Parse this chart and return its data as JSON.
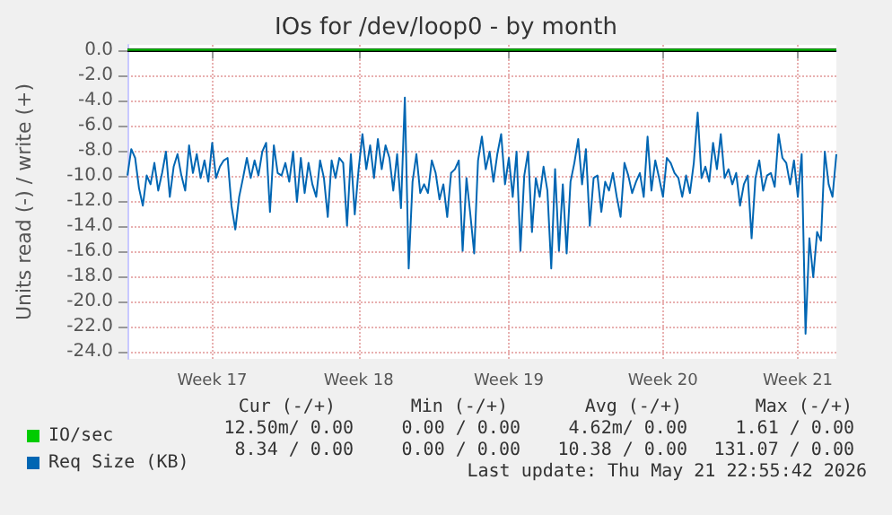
{
  "chart_data": {
    "type": "line",
    "title": "IOs for /dev/loop0 - by month",
    "ylabel": "Units read (-) / write (+)",
    "categories": [
      null,
      null,
      null,
      null,
      null,
      null,
      null,
      null,
      null,
      null,
      null,
      null,
      null,
      null,
      null,
      null,
      null,
      null,
      null,
      null,
      null,
      null,
      "Week 17",
      null,
      null,
      null,
      null,
      null,
      null,
      null,
      null,
      null,
      null,
      null,
      null,
      null,
      null,
      null,
      null,
      null,
      null,
      null,
      null,
      null,
      null,
      null,
      null,
      null,
      null,
      null,
      null,
      null,
      null,
      null,
      null,
      null,
      null,
      null,
      null,
      null,
      "Week 18",
      null,
      null,
      null,
      null,
      null,
      null,
      null,
      null,
      null,
      null,
      null,
      null,
      null,
      null,
      null,
      null,
      null,
      null,
      null,
      null,
      null,
      null,
      null,
      null,
      null,
      null,
      null,
      null,
      null,
      null,
      null,
      null,
      null,
      null,
      null,
      null,
      null,
      null,
      "Week 19",
      null,
      null,
      null,
      null,
      null,
      null,
      null,
      null,
      null,
      null,
      null,
      null,
      null,
      null,
      null,
      null,
      null,
      null,
      null,
      null,
      null,
      null,
      null,
      null,
      null,
      null,
      null,
      null,
      null,
      null,
      null,
      null,
      null,
      null,
      null,
      null,
      null,
      null,
      null,
      "Week 20",
      null,
      null,
      null,
      null,
      null,
      null,
      null,
      null,
      null,
      null,
      null,
      null,
      null,
      null,
      null,
      null,
      null,
      null,
      null,
      null,
      null,
      null,
      null,
      null,
      null,
      null,
      null,
      null,
      null,
      null,
      null,
      null,
      null,
      null,
      "Week 21",
      null,
      null,
      null,
      null,
      null,
      null,
      null,
      null,
      null,
      null
    ],
    "ylim": [
      -24.6,
      0.4
    ],
    "yticks": [
      {
        "value": 0,
        "label": "0.0"
      },
      {
        "value": -2,
        "label": "-2.0"
      },
      {
        "value": -4,
        "label": "-4.0"
      },
      {
        "value": -6,
        "label": "-6.0"
      },
      {
        "value": -8,
        "label": "-8.0"
      },
      {
        "value": -10,
        "label": "-10.0"
      },
      {
        "value": -12,
        "label": "-12.0"
      },
      {
        "value": -14,
        "label": "-14.0"
      },
      {
        "value": -16,
        "label": "-16.0"
      },
      {
        "value": -18,
        "label": "-18.0"
      },
      {
        "value": -20,
        "label": "-20.0"
      },
      {
        "value": -22,
        "label": "-22.0"
      },
      {
        "value": -24,
        "label": "-24.0"
      }
    ],
    "grid": true,
    "legend": "bottom left",
    "ref_lines": [
      {
        "axis": "y",
        "value": 0,
        "color": "#000000"
      }
    ],
    "series": [
      {
        "name": "IO/sec",
        "color": "#00cc00",
        "values": [
          0,
          0,
          0,
          0,
          0,
          0,
          0,
          0,
          0,
          0,
          0,
          0,
          0,
          0,
          0,
          0,
          0,
          0,
          0,
          0,
          0,
          0,
          0,
          0,
          0,
          0,
          0,
          0,
          0,
          0,
          0,
          0,
          0,
          0,
          0,
          0,
          0,
          0,
          0,
          0,
          0,
          0,
          0,
          0,
          0,
          0,
          0,
          0,
          0,
          0,
          0,
          0,
          0,
          0,
          0,
          0,
          0,
          0,
          0,
          0,
          0,
          0,
          0,
          0,
          0,
          0,
          0,
          0,
          0,
          0,
          0,
          0,
          0,
          0,
          0,
          0,
          0,
          0,
          0,
          0,
          0,
          0,
          0,
          0,
          0,
          0,
          0,
          0,
          0,
          0,
          0,
          0,
          0,
          0,
          0,
          0,
          0,
          0,
          0,
          0,
          0,
          0,
          0,
          0,
          0,
          0,
          0,
          0,
          0,
          0,
          0,
          0,
          0,
          0,
          0,
          0,
          0,
          0,
          0,
          0,
          0,
          0,
          0,
          0,
          0,
          0,
          0,
          0,
          0,
          0,
          0,
          0,
          0,
          0,
          0,
          0,
          0,
          0,
          0,
          0,
          0,
          0,
          0,
          0,
          0,
          0,
          0,
          0,
          0,
          0,
          0,
          0,
          0,
          0,
          0,
          0,
          0,
          0,
          0,
          0,
          0,
          0,
          0,
          0,
          0,
          0,
          0,
          0,
          0,
          0,
          0,
          0,
          0,
          0,
          0,
          0,
          0,
          0,
          0,
          0,
          0,
          0,
          0,
          0,
          0
        ]
      },
      {
        "name": "Req Size (KB)",
        "color": "#0066b3",
        "values": [
          -10.0,
          -7.9,
          -8.6,
          -11.0,
          -12.4,
          -10.0,
          -10.7,
          -9.0,
          -11.2,
          -9.8,
          -8.1,
          -11.7,
          -9.3,
          -8.3,
          -10.0,
          -11.2,
          -7.6,
          -9.8,
          -8.3,
          -10.2,
          -8.8,
          -10.5,
          -7.4,
          -10.2,
          -9.3,
          -8.8,
          -8.6,
          -12.4,
          -14.3,
          -11.7,
          -10.2,
          -8.6,
          -10.2,
          -8.8,
          -10.0,
          -8.1,
          -7.4,
          -12.9,
          -7.6,
          -9.8,
          -10.0,
          -9.0,
          -10.5,
          -8.1,
          -12.1,
          -8.6,
          -11.4,
          -9.0,
          -10.7,
          -11.7,
          -8.8,
          -10.2,
          -13.3,
          -8.8,
          -10.2,
          -8.6,
          -9.0,
          -14.0,
          -8.3,
          -13.1,
          -9.5,
          -6.7,
          -9.5,
          -7.6,
          -10.2,
          -7.1,
          -9.5,
          -7.6,
          -8.6,
          -11.2,
          -8.3,
          -12.6,
          -3.8,
          -17.4,
          -10.5,
          -8.3,
          -11.4,
          -10.7,
          -11.4,
          -8.8,
          -9.8,
          -11.9,
          -10.7,
          -13.3,
          -9.8,
          -9.5,
          -8.8,
          -16.0,
          -10.2,
          -13.1,
          -16.2,
          -8.8,
          -6.9,
          -9.5,
          -8.1,
          -10.5,
          -8.3,
          -6.7,
          -10.7,
          -8.6,
          -11.7,
          -8.1,
          -16.0,
          -10.0,
          -8.1,
          -14.5,
          -10.2,
          -11.7,
          -9.3,
          -11.2,
          -17.4,
          -9.5,
          -16.0,
          -10.7,
          -16.2,
          -10.5,
          -9.0,
          -7.1,
          -10.7,
          -7.9,
          -14.0,
          -10.2,
          -10.0,
          -12.9,
          -10.5,
          -11.2,
          -9.8,
          -11.7,
          -13.3,
          -9.0,
          -10.0,
          -11.4,
          -10.5,
          -9.8,
          -11.7,
          -6.9,
          -11.2,
          -8.8,
          -10.2,
          -11.7,
          -8.6,
          -9.0,
          -9.8,
          -10.2,
          -11.7,
          -10.0,
          -11.4,
          -9.0,
          -5.0,
          -10.2,
          -9.3,
          -10.5,
          -7.4,
          -9.5,
          -6.7,
          -10.2,
          -9.5,
          -10.7,
          -9.8,
          -12.4,
          -10.7,
          -10.0,
          -15.0,
          -10.2,
          -8.8,
          -11.2,
          -10.0,
          -9.8,
          -10.9,
          -6.7,
          -8.6,
          -9.0,
          -10.7,
          -8.8,
          -11.7,
          -8.3,
          -22.6,
          -15.0,
          -18.1,
          -14.5,
          -15.2,
          -8.1,
          -10.7,
          -11.7,
          -8.3
        ]
      }
    ],
    "annotations": [
      "Cur (-/+)",
      "Min (-/+)",
      "Avg (-/+)",
      "Max (-/+)",
      "12.50m/ 0.00",
      "0.00 / 0.00",
      "4.62m/ 0.00",
      "1.61 / 0.00",
      "8.34 / 0.00",
      "0.00 / 0.00",
      "10.38 / 0.00",
      "131.07 / 0.00",
      "Last update: Thu May 21 22:55:42 2026"
    ]
  }
}
